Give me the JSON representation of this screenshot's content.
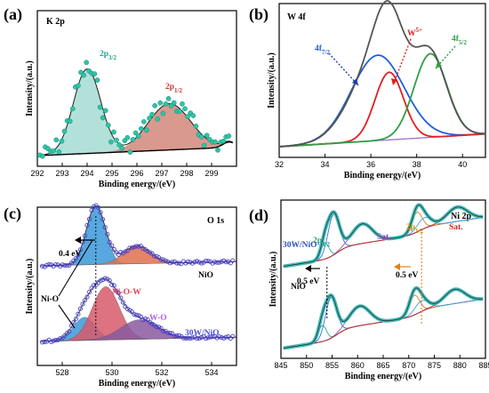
{
  "chart_data": [
    {
      "panel": "(a)",
      "type": "line",
      "title": "K 2p",
      "xlabel": "Binding energy/(eV)",
      "ylabel": "Intensity/(a.u.)",
      "xlim": [
        292,
        300
      ],
      "xticks": [
        "292",
        "293",
        "294",
        "295",
        "296",
        "297",
        "298",
        "299"
      ],
      "peaks": [
        {
          "name": "2p3/2",
          "center": 294.0,
          "fill": "#2aa198"
        },
        {
          "name": "2p1/2",
          "center": 297.3,
          "fill": "#c0392b"
        }
      ],
      "labels": {
        "p32": "2p3/2",
        "p12": "2p1/2"
      }
    },
    {
      "panel": "(b)",
      "type": "line",
      "title": "W 4f",
      "xlabel": "Binding energy/(eV)",
      "ylabel": "Intensity/(a.u.)",
      "xlim": [
        32,
        41
      ],
      "xticks": [
        "32",
        "34",
        "36",
        "38",
        "40"
      ],
      "peaks": [
        {
          "name": "4f7/2",
          "center": 36.3,
          "color": "#1f5fd6"
        },
        {
          "name": "W5+",
          "center": 36.8,
          "color": "#e02020"
        },
        {
          "name": "4f5/2",
          "center": 38.6,
          "color": "#2e9e44"
        }
      ],
      "labels": {
        "f72": "4f7/2",
        "w5": "W5+",
        "f52": "4f5/2"
      }
    },
    {
      "panel": "(c)",
      "type": "line",
      "title": "O 1s",
      "xlabel": "Binding energy/(eV)",
      "ylabel": "Intensity/(a.u.)",
      "xlim": [
        527,
        535
      ],
      "xticks": [
        "528",
        "530",
        "532",
        "534"
      ],
      "series": [
        {
          "name": "NiO"
        },
        {
          "name": "30W/NiO"
        }
      ],
      "labels": {
        "shift": "0.4 eV",
        "nio": "NiO",
        "wnio": "30W/NiO",
        "nio_o": "Ni-O",
        "nio_w": "Ni-O-W",
        "wo": "W-O"
      }
    },
    {
      "panel": "(d)",
      "type": "line",
      "title": "Ni 2p",
      "xlabel": "Binding energy/(eV)",
      "ylabel": "Intensity/(a.u.)",
      "xlim": [
        845,
        885
      ],
      "xticks": [
        "845",
        "850",
        "855",
        "860",
        "865",
        "870",
        "875",
        "880",
        "885"
      ],
      "series": [
        {
          "name": "30W/NiO"
        },
        {
          "name": "NiO"
        }
      ],
      "labels": {
        "p32": "2p3/2",
        "p12": "2p1/2",
        "sat1": "Sat.",
        "sat2": "Sat.",
        "shift1": "0.5 eV",
        "shift2": "0.5 eV",
        "wnio": "30W/NiO",
        "nio": "NiO"
      }
    }
  ]
}
